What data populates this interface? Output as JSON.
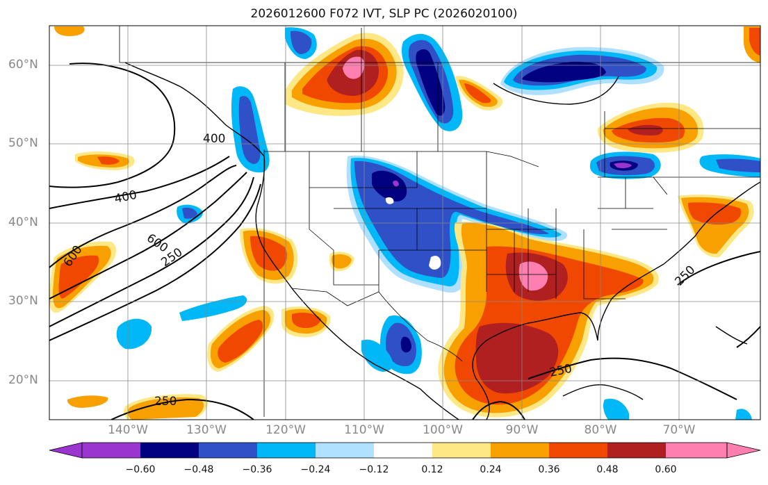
{
  "title": "2026012600 F072 IVT, SLP PC (2026020100)",
  "latitude_labels": [
    "60°N",
    "50°N",
    "40°N",
    "30°N",
    "20°N"
  ],
  "longitude_labels": [
    "140°W",
    "130°W",
    "120°W",
    "110°W",
    "100°W",
    "90°W",
    "80°W",
    "70°W"
  ],
  "contour_labels": [
    "400",
    "400",
    "600",
    "600",
    "250",
    "250",
    "250",
    "250"
  ],
  "colorbar": {
    "tick_labels": [
      "−0.60",
      "−0.48",
      "−0.36",
      "−0.24",
      "−0.12",
      "0.12",
      "0.24",
      "0.36",
      "0.48",
      "0.60"
    ],
    "colors": [
      "#9a35d0",
      "#000080",
      "#3050c8",
      "#00b8f8",
      "#b0e0ff",
      "#ffffff",
      "#fde885",
      "#f8a000",
      "#f04800",
      "#b02020",
      "#ff80b0"
    ]
  }
}
